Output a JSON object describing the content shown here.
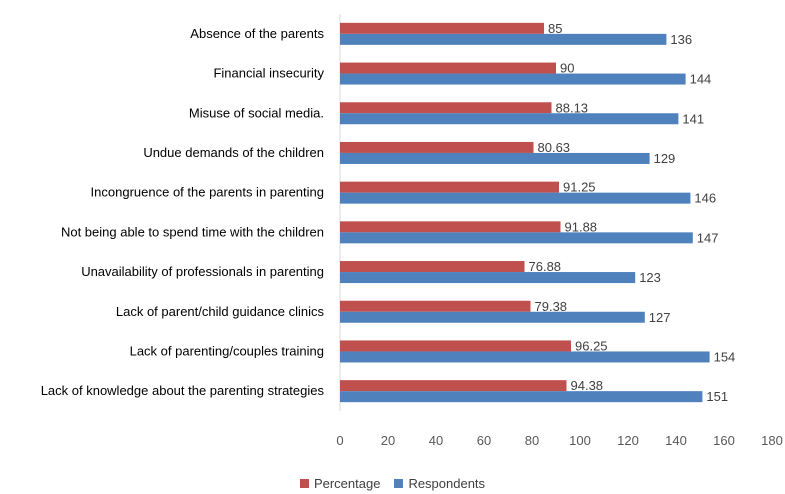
{
  "chart_data": {
    "type": "bar",
    "orientation": "horizontal",
    "categories": [
      "Absence of the parents",
      "Financial insecurity",
      "Misuse of social media.",
      "Undue demands of the children",
      "Incongruence of the parents in parenting",
      "Not being able to spend time with the children",
      "Unavailability of  professionals in parenting",
      "Lack of parent/child guidance clinics",
      "Lack of parenting/couples training",
      "Lack of knowledge about the parenting strategies"
    ],
    "series": [
      {
        "name": "Percentage",
        "color": "#c0504d",
        "values": [
          85,
          90,
          88.13,
          80.63,
          91.25,
          91.88,
          76.88,
          79.38,
          96.25,
          94.38
        ],
        "labels": [
          "85",
          "90",
          "88.13",
          "80.63",
          "91.25",
          "91.88",
          "76.88",
          "79.38",
          "96.25",
          "94.38"
        ]
      },
      {
        "name": "Respondents",
        "color": "#4f81bd",
        "values": [
          136,
          144,
          141,
          129,
          146,
          147,
          123,
          127,
          154,
          151
        ],
        "labels": [
          "136",
          "144",
          "141",
          "129",
          "146",
          "147",
          "123",
          "127",
          "154",
          "151"
        ]
      }
    ],
    "xlim": [
      0,
      180
    ],
    "xticks": [
      "0",
      "20",
      "40",
      "60",
      "80",
      "100",
      "120",
      "140",
      "160",
      "180"
    ],
    "grid": false,
    "legend_position": "bottom",
    "title": "",
    "xlabel": "",
    "ylabel": ""
  }
}
